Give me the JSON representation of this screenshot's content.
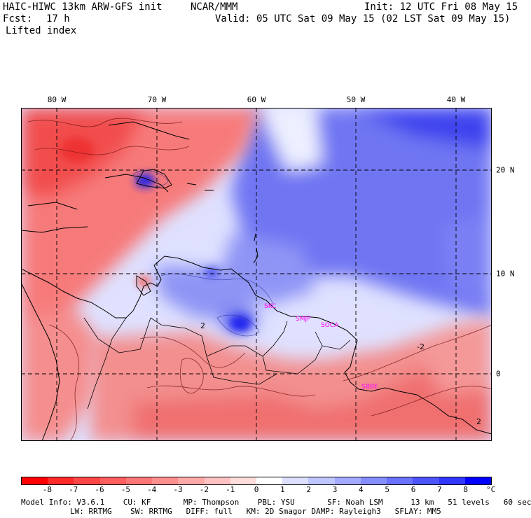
{
  "header": {
    "model_title": "HAIC-HIWC 13km ARW-GFS init",
    "center": "NCAR/MMM",
    "init": "Init: 12 UTC Fri 08 May 15",
    "fcst_label": "Fcst:",
    "fcst_value": "17 h",
    "valid": "Valid: 05 UTC Sat 09 May 15 (02 LST Sat 09 May 15)",
    "field": "Lifted index"
  },
  "map": {
    "lon_labels": [
      "80 W",
      "70 W",
      "60 W",
      "50 W",
      "40 W"
    ],
    "lat_labels": [
      "20 N",
      "10 N",
      "0"
    ],
    "contour_labels": [
      "2",
      "-2",
      "2"
    ],
    "stations": [
      "SKC",
      "SMJP",
      "SOCA",
      "SBBE"
    ]
  },
  "colorbar": {
    "ticks": [
      "-8",
      "-7",
      "-6",
      "-5",
      "-4",
      "-3",
      "-2",
      "-1",
      "0",
      "1",
      "2",
      "3",
      "4",
      "5",
      "6",
      "7",
      "8"
    ],
    "unit": "°C",
    "colors": [
      "#ff0000",
      "#ff2a2a",
      "#ff4646",
      "#ff5e5e",
      "#ff7777",
      "#ff9090",
      "#ffa9a9",
      "#ffc2c2",
      "#ffdddd",
      "#ffffff",
      "#dde0ff",
      "#c0c6ff",
      "#a3aaff",
      "#868eff",
      "#6a72ff",
      "#4e55ff",
      "#3237ff",
      "#0000ff"
    ]
  },
  "footer": {
    "line1": "Model Info: V3.6.1    CU: KF       MP: Thompson    PBL: YSU       SF: Noah LSM      13 km   51 levels   60 sec",
    "line2": "LW: RRTMG    SW: RRTMG   DIFF: full   KM: 2D Smagor DAMP: Rayleigh3   SFLAY: MM5"
  }
}
